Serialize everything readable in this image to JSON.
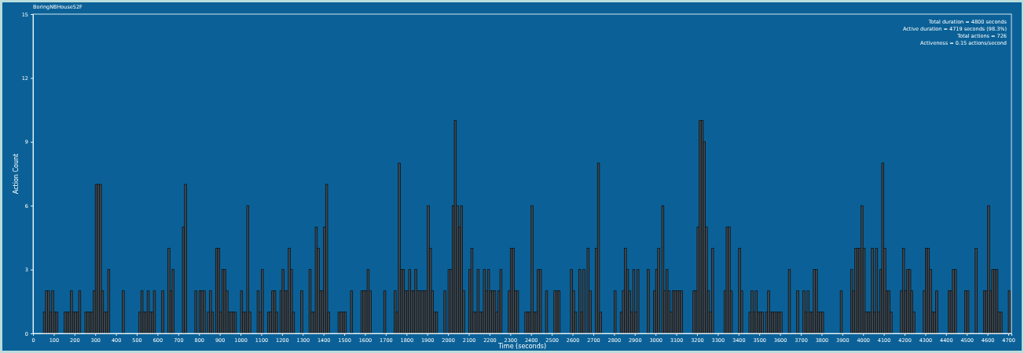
{
  "chart_data": {
    "type": "histogram",
    "title": "BoringNBHouse52F",
    "xlabel": "Time (seconds)",
    "ylabel": "Action Count",
    "annotations": [
      "Total duration = 4800 seconds",
      "Active duration = 4719 seconds (98.3%)",
      "Total actions = 726",
      "Activeness = 0.15 actions/second"
    ],
    "color": "#3c4a55",
    "bins": [
      0,
      10,
      20,
      30,
      40,
      50,
      60,
      70,
      80,
      90,
      100,
      110,
      120,
      130,
      140,
      150,
      160,
      170,
      180,
      190,
      200,
      210,
      220,
      230,
      240,
      250,
      260,
      270,
      280,
      290,
      300,
      310,
      320,
      330,
      340,
      350,
      360,
      370,
      380,
      390,
      400,
      410,
      420,
      430,
      440,
      450,
      460,
      470,
      480,
      490,
      500,
      510,
      520,
      530,
      540,
      550,
      560,
      570,
      580,
      590,
      600,
      610,
      620,
      630,
      640,
      650,
      660,
      670,
      680,
      690,
      700,
      710,
      720,
      730,
      740,
      750,
      760,
      770,
      780,
      790,
      800,
      810,
      820,
      830,
      840,
      850,
      860,
      870,
      880,
      890,
      900,
      910,
      920,
      930,
      940,
      950,
      960,
      970,
      980,
      990,
      1000,
      1010,
      1020,
      1030,
      1040,
      1050,
      1060,
      1070,
      1080,
      1090,
      1100,
      1110,
      1120,
      1130,
      1140,
      1150,
      1160,
      1170,
      1180,
      1190,
      1200,
      1210,
      1220,
      1230,
      1240,
      1250,
      1260,
      1270,
      1280,
      1290,
      1300,
      1310,
      1320,
      1330,
      1340,
      1350,
      1360,
      1370,
      1380,
      1390,
      1400,
      1410,
      1420,
      1430,
      1440,
      1450,
      1460,
      1470,
      1480,
      1490,
      1500,
      1510,
      1520,
      1530,
      1540,
      1550,
      1560,
      1570,
      1580,
      1590,
      1600,
      1610,
      1620,
      1630,
      1640,
      1650,
      1660,
      1670,
      1680,
      1690,
      1700,
      1710,
      1720,
      1730,
      1740,
      1750,
      1760,
      1770,
      1780,
      1790,
      1800,
      1810,
      1820,
      1830,
      1840,
      1850,
      1860,
      1870,
      1880,
      1890,
      1900,
      1910,
      1920,
      1930,
      1940,
      1950,
      1960,
      1970,
      1980,
      1990,
      2000,
      2010,
      2020,
      2030,
      2040,
      2050,
      2060,
      2070,
      2080,
      2090,
      2100,
      2110,
      2120,
      2130,
      2140,
      2150,
      2160,
      2170,
      2180,
      2190,
      2200,
      2210,
      2220,
      2230,
      2240,
      2250,
      2260,
      2270,
      2280,
      2290,
      2300,
      2310,
      2320,
      2330,
      2340,
      2350,
      2360,
      2370,
      2380,
      2390,
      2400,
      2410,
      2420,
      2430,
      2440,
      2450,
      2460,
      2470,
      2480,
      2490,
      2500,
      2510,
      2520,
      2530,
      2540,
      2550,
      2560,
      2570,
      2580,
      2590,
      2600,
      2610,
      2620,
      2630,
      2640,
      2650,
      2660,
      2670,
      2680,
      2690,
      2700,
      2710,
      2720,
      2730,
      2740,
      2750,
      2760,
      2770,
      2780,
      2790,
      2800,
      2810,
      2820,
      2830,
      2840,
      2850,
      2860,
      2870,
      2880,
      2890,
      2900,
      2910,
      2920,
      2930,
      2940,
      2950,
      2960,
      2970,
      2980,
      2990,
      3000,
      3010,
      3020,
      3030,
      3040,
      3050,
      3060,
      3070,
      3080,
      3090,
      3100,
      3110,
      3120,
      3130,
      3140,
      3150,
      3160,
      3170,
      3180,
      3190,
      3200,
      3210,
      3220,
      3230,
      3240,
      3250,
      3260,
      3270,
      3280,
      3290,
      3300,
      3310,
      3320,
      3330,
      3340,
      3350,
      3360,
      3370,
      3380,
      3390,
      3400,
      3410,
      3420,
      3430,
      3440,
      3450,
      3460,
      3470,
      3480,
      3490,
      3500,
      3510,
      3520,
      3530,
      3540,
      3550,
      3560,
      3570,
      3580,
      3590,
      3600,
      3610,
      3620,
      3630,
      3640,
      3650,
      3660,
      3670,
      3680,
      3690,
      3700,
      3710,
      3720,
      3730,
      3740,
      3750,
      3760,
      3770,
      3780,
      3790,
      3800,
      3810,
      3820,
      3830,
      3840,
      3850,
      3860,
      3870,
      3880,
      3890,
      3900,
      3910,
      3920,
      3930,
      3940,
      3950,
      3960,
      3970,
      3980,
      3990,
      4000,
      4010,
      4020,
      4030,
      4040,
      4050,
      4060,
      4070,
      4080,
      4090,
      4100,
      4110,
      4120,
      4130,
      4140,
      4150,
      4160,
      4170,
      4180,
      4190,
      4200,
      4210,
      4220,
      4230,
      4240,
      4250,
      4260,
      4270,
      4280,
      4290,
      4300,
      4310,
      4320,
      4330,
      4340,
      4350,
      4360,
      4370,
      4380,
      4390,
      4400,
      4410,
      4420,
      4430,
      4440,
      4450,
      4460,
      4470,
      4480,
      4490,
      4500,
      4510,
      4520,
      4530,
      4540,
      4550,
      4560,
      4570,
      4580,
      4590,
      4600,
      4610,
      4620,
      4630,
      4640,
      4650,
      4660,
      4670,
      4680,
      4690,
      4700,
      4710
    ],
    "values": [
      0,
      0,
      0,
      0,
      0,
      1,
      2,
      2,
      1,
      2,
      1,
      1,
      0,
      0,
      0,
      1,
      1,
      1,
      2,
      1,
      1,
      1,
      2,
      0,
      0,
      1,
      1,
      1,
      1,
      2,
      7,
      7,
      7,
      2,
      1,
      1,
      3,
      0,
      0,
      0,
      0,
      0,
      0,
      2,
      0,
      0,
      0,
      0,
      0,
      0,
      0,
      1,
      2,
      1,
      1,
      2,
      1,
      1,
      2,
      0,
      0,
      0,
      2,
      0,
      0,
      4,
      2,
      3,
      0,
      0,
      0,
      0,
      5,
      7,
      0,
      0,
      0,
      0,
      2,
      0,
      2,
      2,
      2,
      0,
      1,
      2,
      1,
      0,
      4,
      4,
      1,
      3,
      3,
      2,
      1,
      1,
      1,
      1,
      0,
      0,
      2,
      1,
      1,
      6,
      1,
      0,
      0,
      0,
      2,
      1,
      3,
      0,
      0,
      1,
      1,
      2,
      2,
      1,
      0,
      2,
      3,
      2,
      2,
      4,
      3,
      1,
      0,
      0,
      0,
      2,
      0,
      0,
      0,
      3,
      1,
      1,
      5,
      4,
      2,
      2,
      5,
      7,
      1,
      0,
      0,
      0,
      0,
      1,
      1,
      1,
      1,
      0,
      0,
      2,
      0,
      0,
      0,
      0,
      2,
      2,
      2,
      3,
      2,
      0,
      0,
      0,
      0,
      0,
      0,
      2,
      0,
      0,
      0,
      0,
      2,
      1,
      8,
      3,
      3,
      2,
      2,
      3,
      2,
      2,
      3,
      2,
      2,
      2,
      2,
      2,
      6,
      4,
      2,
      1,
      1,
      0,
      0,
      0,
      2,
      0,
      3,
      3,
      6,
      10,
      6,
      5,
      6,
      2,
      0,
      0,
      3,
      4,
      1,
      1,
      3,
      1,
      1,
      3,
      2,
      3,
      2,
      2,
      2,
      1,
      2,
      3,
      0,
      0,
      0,
      2,
      4,
      4,
      2,
      2,
      0,
      0,
      0,
      1,
      1,
      1,
      6,
      1,
      1,
      3,
      3,
      0,
      0,
      2,
      0,
      0,
      0,
      2,
      2,
      2,
      0,
      0,
      0,
      0,
      0,
      3,
      2,
      1,
      0,
      3,
      1,
      3,
      0,
      4,
      2,
      0,
      0,
      4,
      8,
      1,
      0,
      0,
      0,
      0,
      0,
      0,
      2,
      0,
      0,
      1,
      2,
      4,
      3,
      2,
      1,
      3,
      1,
      3,
      0,
      0,
      0,
      0,
      3,
      0,
      0,
      2,
      3,
      4,
      0,
      6,
      2,
      3,
      2,
      1,
      2,
      2,
      2,
      2,
      2,
      0,
      0,
      0,
      0,
      0,
      2,
      2,
      5,
      10,
      10,
      9,
      5,
      2,
      1,
      4,
      0,
      0,
      0,
      0,
      0,
      2,
      5,
      5,
      2,
      0,
      0,
      0,
      4,
      2,
      0,
      0,
      0,
      1,
      2,
      1,
      2,
      1,
      1,
      1,
      0,
      1,
      2,
      1,
      1,
      1,
      1,
      1,
      1,
      0,
      0,
      0,
      3,
      0,
      0,
      0,
      2,
      0,
      0,
      2,
      1,
      2,
      1,
      1,
      3,
      3,
      1,
      1,
      1,
      0,
      0,
      0,
      0,
      0,
      0,
      0,
      0,
      2,
      0,
      0,
      0,
      0,
      3,
      2,
      4,
      4,
      4,
      6,
      4,
      1,
      1,
      1,
      4,
      1,
      4,
      1,
      3,
      8,
      4,
      2,
      2,
      1,
      0,
      0,
      0,
      0,
      2,
      4,
      2,
      3,
      3,
      2,
      1,
      0,
      0,
      0,
      0,
      2,
      4,
      4,
      3,
      1,
      1,
      2,
      0,
      0,
      0,
      0,
      0,
      2,
      2,
      3,
      3,
      0,
      0,
      0,
      0,
      2,
      2,
      0,
      0,
      0,
      4,
      0,
      0,
      0,
      2,
      2,
      6,
      2,
      3,
      3,
      3,
      1,
      1,
      0,
      0,
      0,
      2
    ],
    "xlim": [
      0,
      4715
    ],
    "xticks": [
      0,
      100,
      200,
      300,
      400,
      500,
      600,
      700,
      800,
      900,
      1000,
      1100,
      1200,
      1300,
      1400,
      1500,
      1600,
      1700,
      1800,
      1900,
      2000,
      2100,
      2200,
      2300,
      2400,
      2500,
      2600,
      2700,
      2800,
      2900,
      3000,
      3100,
      3200,
      3300,
      3400,
      3500,
      3600,
      3700,
      3800,
      3900,
      4000,
      4100,
      4200,
      4300,
      4400,
      4500,
      4600,
      4700
    ],
    "ylim": [
      0,
      15
    ],
    "yticks": [
      0,
      3,
      6,
      9,
      12,
      15
    ]
  }
}
